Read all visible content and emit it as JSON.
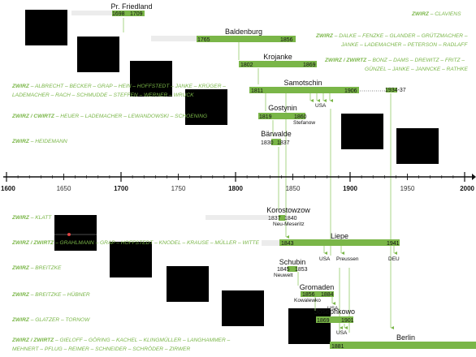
{
  "axis": {
    "ticks": [
      {
        "year": 1600,
        "label": "1600",
        "major": true
      },
      {
        "year": 1650,
        "label": "1650",
        "major": false
      },
      {
        "year": 1700,
        "label": "1700",
        "major": true
      },
      {
        "year": 1750,
        "label": "1750",
        "major": false
      },
      {
        "year": 1800,
        "label": "1800",
        "major": true
      },
      {
        "year": 1850,
        "label": "1850",
        "major": false
      },
      {
        "year": 1900,
        "label": "1900",
        "major": true
      },
      {
        "year": 1950,
        "label": "1950",
        "major": false
      },
      {
        "year": 2000,
        "label": "2000",
        "major": true
      }
    ]
  },
  "places": [
    {
      "id": "pr-friedland",
      "name": "Pr. Friedland",
      "start": "1698",
      "end": "1709",
      "ghost_from": 1640
    },
    {
      "id": "baldenburg",
      "name": "Baldenburg",
      "start": "1765",
      "end": "1856",
      "ghost_from": 1640
    },
    {
      "id": "krojanke",
      "name": "Krojanke",
      "start": "1802",
      "end": "1869"
    },
    {
      "id": "samotschin",
      "name": "Samotschin",
      "start": "1811",
      "end": "1906",
      "after": "1934-37"
    },
    {
      "id": "gostynin",
      "name": "Gostynin",
      "start": "1819",
      "end": "1860",
      "note": "Stefanow"
    },
    {
      "id": "barwalde",
      "name": "Bärwalde",
      "start": "1830",
      "end": "1837"
    },
    {
      "id": "korostowzow",
      "name": "Korostowzow",
      "start": "1837",
      "end": "1840",
      "note": "Neu-Meseritz",
      "ghost_from": 1645
    },
    {
      "id": "liepe",
      "name": "Liepe",
      "start": "1843",
      "end": "1941",
      "ghost_from": 1645
    },
    {
      "id": "schubin",
      "name": "Schubin",
      "start": "1845",
      "end": "1853",
      "note": "Neuwelt"
    },
    {
      "id": "gromaden",
      "name": "Gromaden",
      "start": "1856",
      "end": "1884",
      "note": "Kowalewko"
    },
    {
      "id": "josephkowo",
      "name": "Josephkowo",
      "start": "1869",
      "end": "1901"
    },
    {
      "id": "berlin",
      "name": "Berlin",
      "start": "1881",
      "end": ""
    }
  ],
  "migrations": [
    {
      "label": "USA"
    },
    {
      "label": "USA"
    },
    {
      "label": "Preussen"
    },
    {
      "label": "DEU"
    },
    {
      "label": "USA"
    },
    {
      "label": "USA"
    }
  ],
  "families": [
    {
      "prefix": "ZWIRZ",
      "lines": [
        "– CLAVIENS"
      ]
    },
    {
      "prefix": "ZWIRZ",
      "lines": [
        "– DALKE – FENZKE – GLANDER – GRÜTZMACHER –",
        "JANKE – LADEMACHER – PETERSON – RADLAFF"
      ]
    },
    {
      "prefix": "ZWIRZ / ZWIRTZ",
      "lines": [
        "– BONZ – DAMS – DREWITZ – FRITZ –",
        "GÜNZEL – JANKE – JANNCKE – RATHKE"
      ]
    },
    {
      "prefix": "ZWIRZ",
      "lines": [
        "– ALBRECHT – BECKER – GRAP – HEIN – HOFFSTEDT – JANKE – KRÜGER –",
        "LADEMACHER – RACH – SCHMUDDE – STEFFEN – WERNER – WRUCK"
      ]
    },
    {
      "prefix": "ZWIRZ / CWIRTZ",
      "lines": [
        "– HEUER – LADEMACHER – LEWANDOWSKI – SCHOENING"
      ]
    },
    {
      "prefix": "ZWIRZ",
      "lines": [
        "– HEIDEMANN"
      ]
    },
    {
      "prefix": "ZWIRZ",
      "lines": [
        "– KLATT"
      ]
    },
    {
      "prefix": "ZWIRZ / ZWIRTZ",
      "lines": [
        "– GRAHLMANN – GRAP – HOFFSTEDT – KNODEL – KRAUSE – MÜLLER – WITTE"
      ]
    },
    {
      "prefix": "ZWIRZ",
      "lines": [
        "– BREITZKE"
      ]
    },
    {
      "prefix": "ZWIRZ",
      "lines": [
        "– BREITZKE – HÜBNER"
      ]
    },
    {
      "prefix": "ZWIRZ",
      "lines": [
        "– GLATZER – TORNOW"
      ]
    },
    {
      "prefix": "ZWIRZ / ZWIRTZ",
      "lines": [
        "– GIELOFF – GÖRING – KACHEL – KLINGMÜLLER – LANGHAMMER –",
        "MEHNERT – PFLUG – REIMER – SCHNEIDER – SCHRÖDER – ZIRWER"
      ]
    }
  ],
  "maps": [
    {
      "name": "poland-map"
    },
    {
      "name": "poland-map"
    },
    {
      "name": "poland-map"
    },
    {
      "name": "poland-map"
    },
    {
      "name": "poland-map"
    },
    {
      "name": "poland-map"
    },
    {
      "name": "poland-map-korostowzow"
    },
    {
      "name": "poland-map"
    },
    {
      "name": "poland-map"
    },
    {
      "name": "poland-map"
    },
    {
      "name": "poland-map"
    }
  ],
  "colors": {
    "bar": "#7ab648",
    "family_text": "#7ab648",
    "ghost": "#ececec",
    "axis": "#111111"
  }
}
